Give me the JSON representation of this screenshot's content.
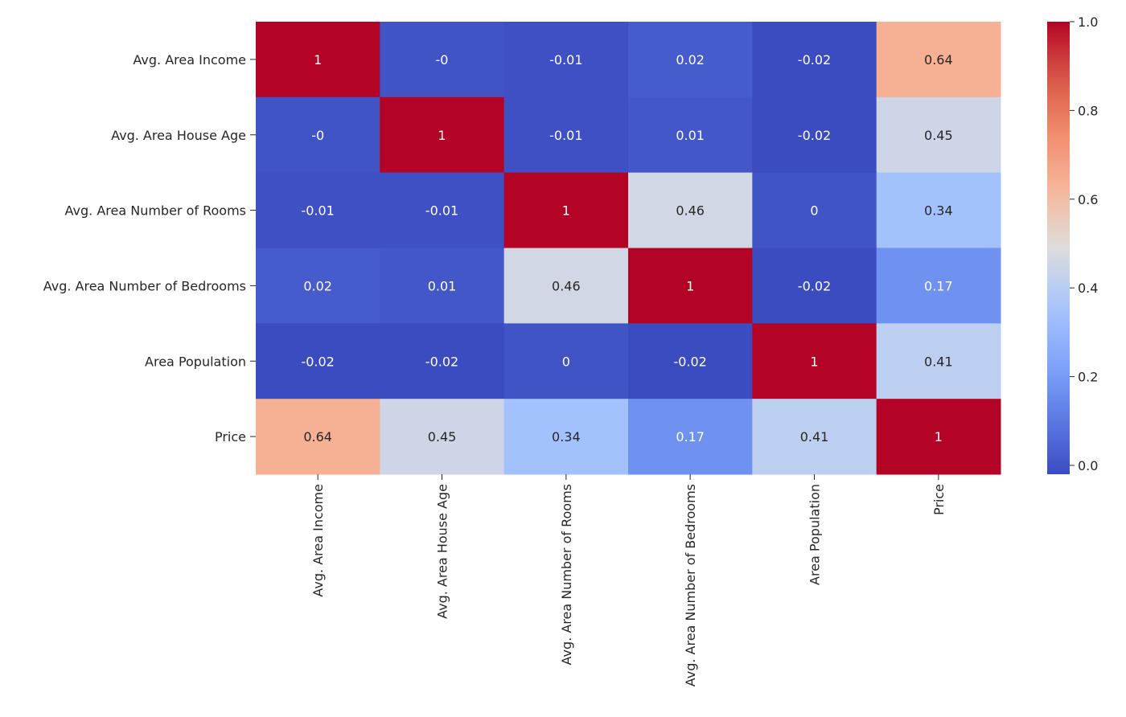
{
  "chart_data": {
    "type": "heatmap",
    "title": "",
    "xlabel": "",
    "ylabel": "",
    "colormap": "coolwarm",
    "x_categories": [
      "Avg. Area Income",
      "Avg. Area House Age",
      "Avg. Area Number of Rooms",
      "Avg. Area Number of Bedrooms",
      "Area Population",
      "Price"
    ],
    "y_categories": [
      "Avg. Area Income",
      "Avg. Area House Age",
      "Avg. Area Number of Rooms",
      "Avg. Area Number of Bedrooms",
      "Area Population",
      "Price"
    ],
    "values": [
      [
        1,
        -0.0,
        -0.01,
        0.02,
        -0.02,
        0.64
      ],
      [
        -0.0,
        1,
        -0.01,
        0.01,
        -0.02,
        0.45
      ],
      [
        -0.01,
        -0.01,
        1,
        0.46,
        0.0,
        0.34
      ],
      [
        0.02,
        0.01,
        0.46,
        1,
        -0.02,
        0.17
      ],
      [
        -0.02,
        -0.02,
        0.0,
        -0.02,
        1,
        0.41
      ],
      [
        0.64,
        0.45,
        0.34,
        0.17,
        0.41,
        1
      ]
    ],
    "annotations": [
      [
        "1",
        "-0",
        "-0.01",
        "0.02",
        "-0.02",
        "0.64"
      ],
      [
        "-0",
        "1",
        "-0.01",
        "0.01",
        "-0.02",
        "0.45"
      ],
      [
        "-0.01",
        "-0.01",
        "1",
        "0.46",
        "0",
        "0.34"
      ],
      [
        "0.02",
        "0.01",
        "0.46",
        "1",
        "-0.02",
        "0.17"
      ],
      [
        "-0.02",
        "-0.02",
        "0",
        "-0.02",
        "1",
        "0.41"
      ],
      [
        "0.64",
        "0.45",
        "0.34",
        "0.17",
        "0.41",
        "1"
      ]
    ],
    "colorbar": {
      "range": [
        -0.02,
        1.0
      ],
      "ticks": [
        0.0,
        0.2,
        0.4,
        0.6,
        0.8,
        1.0
      ],
      "tick_labels": [
        "0.0",
        "0.2",
        "0.4",
        "0.6",
        "0.8",
        "1.0"
      ]
    },
    "legend": "colorbar-right",
    "grid": false
  }
}
